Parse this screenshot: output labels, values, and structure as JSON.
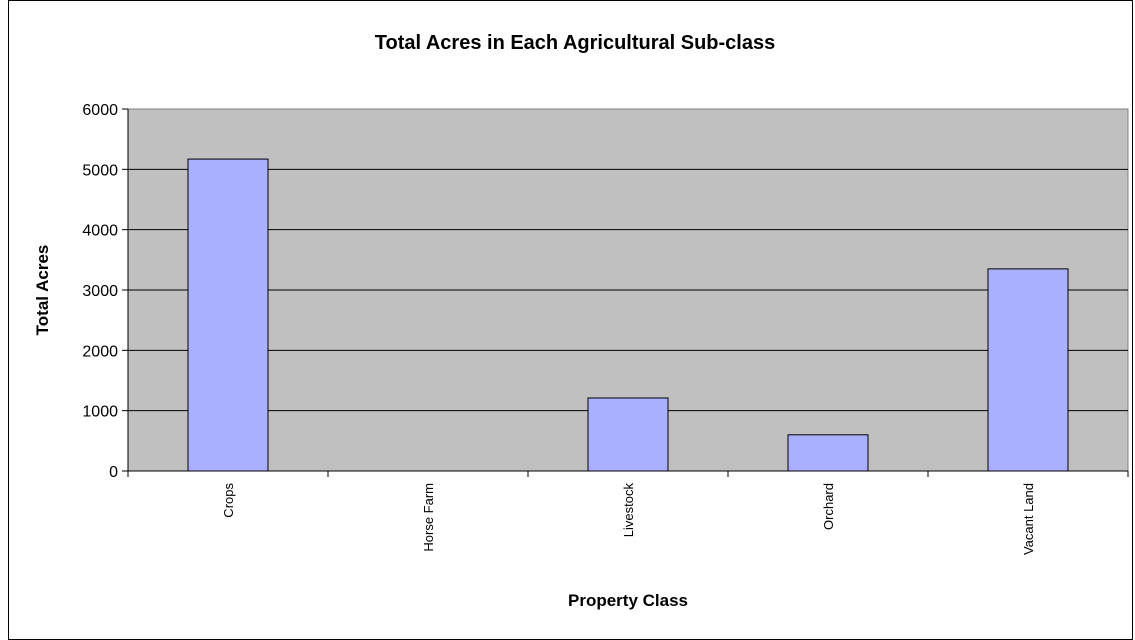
{
  "chart_data": {
    "type": "bar",
    "title": "Total Acres in Each Agricultural Sub-class",
    "xlabel": "Property Class",
    "ylabel": "Total Acres",
    "categories": [
      "Crops",
      "Horse Farm",
      "Livestock",
      "Orchard",
      "Vacant Land"
    ],
    "values": [
      5170,
      0,
      1210,
      600,
      3350
    ],
    "ylim": [
      0,
      6000
    ],
    "yticks": [
      "0",
      "1000",
      "2000",
      "3000",
      "4000",
      "5000",
      "6000"
    ],
    "grid": true,
    "legend": "none",
    "colors": {
      "bar_fill": "#aab0ff",
      "plot_background": "#c0c0c0",
      "gridline": "#000000"
    }
  }
}
